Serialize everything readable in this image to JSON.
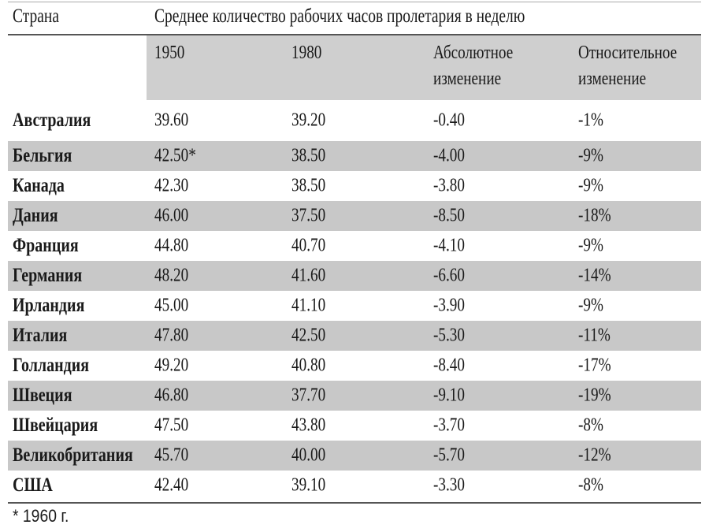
{
  "table": {
    "country_header": "Страна",
    "group_header": "Среднее количество рабочих часов пролетария в неделю",
    "sub_headers": {
      "y1950": "1950",
      "y1980": "1980",
      "abs_line1": "Абсолютное",
      "abs_line2": "изменение",
      "rel_line1": "Относительное",
      "rel_line2": "изменение"
    },
    "rows": [
      {
        "country": "Австралия",
        "y1950": "39.60",
        "y1980": "39.20",
        "abs": "-0.40",
        "rel": "-1%"
      },
      {
        "country": "Бельгия",
        "y1950": "42.50*",
        "y1980": "38.50",
        "abs": "-4.00",
        "rel": "-9%"
      },
      {
        "country": "Канада",
        "y1950": "42.30",
        "y1980": "38.50",
        "abs": "-3.80",
        "rel": "-9%"
      },
      {
        "country": "Дания",
        "y1950": "46.00",
        "y1980": "37.50",
        "abs": "-8.50",
        "rel": "-18%"
      },
      {
        "country": "Франция",
        "y1950": "44.80",
        "y1980": "40.70",
        "abs": "-4.10",
        "rel": "-9%"
      },
      {
        "country": "Германия",
        "y1950": "48.20",
        "y1980": "41.60",
        "abs": "-6.60",
        "rel": "-14%"
      },
      {
        "country": "Ирландия",
        "y1950": "45.00",
        "y1980": "41.10",
        "abs": "-3.90",
        "rel": "-9%"
      },
      {
        "country": "Италия",
        "y1950": "47.80",
        "y1980": "42.50",
        "abs": "-5.30",
        "rel": "-11%"
      },
      {
        "country": "Голландия",
        "y1950": "49.20",
        "y1980": "40.80",
        "abs": "-8.40",
        "rel": "-17%"
      },
      {
        "country": "Швеция",
        "y1950": "46.80",
        "y1980": "37.70",
        "abs": "-9.10",
        "rel": "-19%"
      },
      {
        "country": "Швейцария",
        "y1950": "47.50",
        "y1980": "43.80",
        "abs": "-3.70",
        "rel": "-8%"
      },
      {
        "country": "Великобритания",
        "y1950": "45.70",
        "y1980": "40.00",
        "abs": "-5.70",
        "rel": "-12%"
      },
      {
        "country": "США",
        "y1950": "42.40",
        "y1980": "39.10",
        "abs": "-3.30",
        "rel": "-8%"
      }
    ]
  },
  "footnote": "* 1960 г.",
  "colors": {
    "shade": "#c8c8c8",
    "header_shade": "#cfcfcf",
    "rule": "#555555"
  }
}
